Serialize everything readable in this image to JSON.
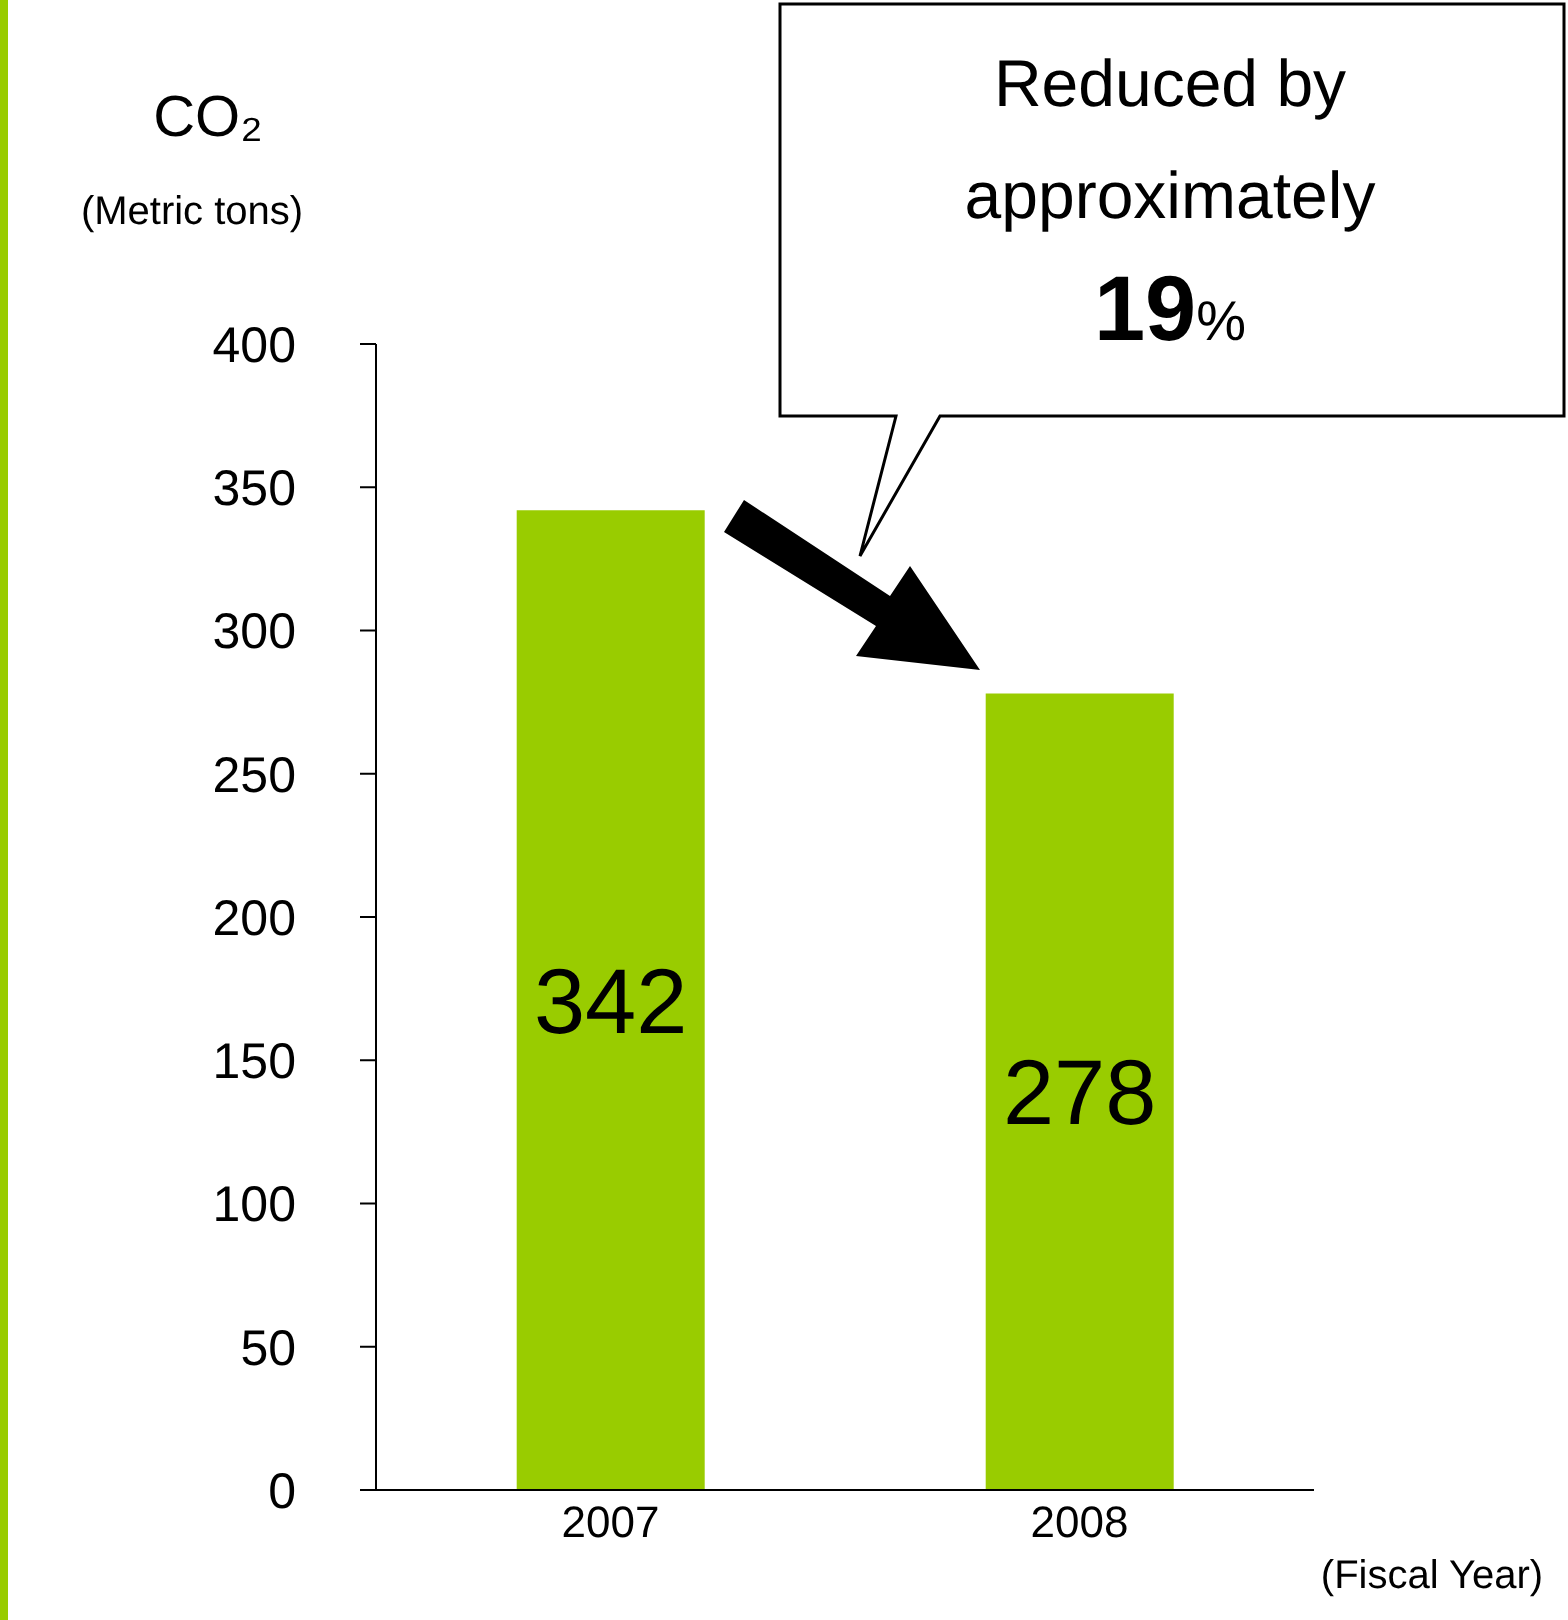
{
  "chart_data": {
    "type": "bar",
    "ylabel": "CO₂",
    "annotations": [
      "(Metric tons)",
      "Reduced by approximately 19%"
    ],
    "xlabel": "(Fiscal Year)",
    "categories": [
      "2007",
      "2008"
    ],
    "values": [
      342,
      278
    ],
    "color": "#99cc00",
    "ylim": [
      0,
      400
    ],
    "yticks": [
      0,
      50,
      100,
      150,
      200,
      250,
      300,
      350,
      400
    ],
    "data_labels": true,
    "grid": false,
    "legend": false
  }
}
